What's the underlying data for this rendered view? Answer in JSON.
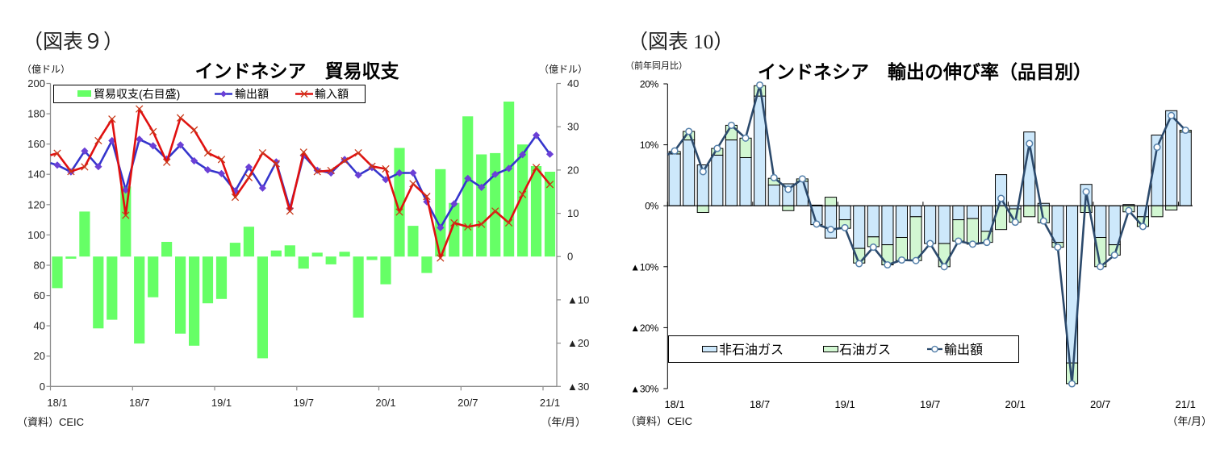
{
  "chart_data": [
    {
      "type": "bar+line",
      "figure_label": "（図表９）",
      "title": "インドネシア　貿易収支",
      "categories": [
        "18/1",
        "18/2",
        "18/3",
        "18/4",
        "18/5",
        "18/6",
        "18/7",
        "18/8",
        "18/9",
        "18/10",
        "18/11",
        "18/12",
        "19/1",
        "19/2",
        "19/3",
        "19/4",
        "19/5",
        "19/6",
        "19/7",
        "19/8",
        "19/9",
        "19/10",
        "19/11",
        "19/12",
        "20/1",
        "20/2",
        "20/3",
        "20/4",
        "20/5",
        "20/6",
        "20/7",
        "20/8",
        "20/9",
        "20/10",
        "20/11",
        "20/12",
        "21/1"
      ],
      "x_tick_labels": [
        "18/1",
        "18/7",
        "19/1",
        "19/7",
        "20/1",
        "20/7",
        "21/1"
      ],
      "x_tick_interval": 6,
      "x_unit": "（年/月）",
      "y_left": {
        "unit": "（億ドル）",
        "min": 0,
        "max": 200,
        "step": 20,
        "tick_labels": [
          "200",
          "180",
          "160",
          "140",
          "120",
          "100",
          "80",
          "60",
          "40",
          "20",
          "0"
        ]
      },
      "y_right": {
        "unit": "（億ドル）",
        "min": -30,
        "max": 40,
        "step": 10,
        "tick_labels": [
          "40",
          "30",
          "20",
          "10",
          "0",
          "▲10",
          "▲20",
          "▲30"
        ]
      },
      "series": [
        {
          "name": "貿易収支(右目盛)",
          "type": "bar",
          "axis": "right",
          "color": "#66ff66",
          "values": [
            -7.3,
            -0.5,
            10.4,
            -16.6,
            -14.6,
            16.2,
            -20.1,
            -9.4,
            3.4,
            -17.8,
            -20.6,
            -10.8,
            -9.8,
            3.2,
            6.9,
            -23.5,
            1.4,
            2.6,
            -2.8,
            0.9,
            -1.8,
            1.1,
            -14.1,
            -0.8,
            -6.4,
            25.1,
            7.1,
            -3.8,
            20.2,
            12.4,
            32.4,
            23.6,
            23.9,
            35.8,
            25.9,
            20.9,
            19.6
          ]
        },
        {
          "name": "輸出額",
          "type": "line",
          "axis": "left",
          "marker": "diamond",
          "color": "#3535cc",
          "marker_color": "#6b40d6",
          "prior_value": 148.7,
          "values": [
            146.1,
            141.6,
            155.4,
            145.1,
            162.2,
            129.7,
            163.1,
            158.8,
            150.1,
            159.4,
            148.9,
            143.0,
            140.5,
            129.0,
            144.8,
            130.9,
            148.2,
            117.4,
            152.4,
            142.7,
            140.9,
            149.8,
            139.5,
            144.5,
            136.5,
            140.9,
            140.9,
            121.9,
            104.8,
            120.5,
            137.3,
            131.4,
            140.0,
            143.9,
            153.0,
            165.8,
            153.3
          ]
        },
        {
          "name": "輸入額",
          "type": "line",
          "axis": "left",
          "marker": "x",
          "color": "#e01010",
          "marker_color": "#c83a1a",
          "prior_value": 151.4,
          "values": [
            153.9,
            141.9,
            144.9,
            162.2,
            176.4,
            113.0,
            183.2,
            168.1,
            148.0,
            177.3,
            169.3,
            154.2,
            149.8,
            124.9,
            137.9,
            154.2,
            147.1,
            115.7,
            154.6,
            141.8,
            142.5,
            148.9,
            154.2,
            145.3,
            143.6,
            115.1,
            133.8,
            125.4,
            84.8,
            108.0,
            105.3,
            107.1,
            115.7,
            108.0,
            126.7,
            144.5,
            133.3
          ]
        }
      ],
      "legend": {
        "position": "top-left"
      },
      "grid": false,
      "source": "（資料）CEIC"
    },
    {
      "type": "stacked-bar+line",
      "figure_label": "（図表 10）",
      "title": "インドネシア　輸出の伸び率（品目別）",
      "categories": [
        "18/1",
        "18/2",
        "18/3",
        "18/4",
        "18/5",
        "18/6",
        "18/7",
        "18/8",
        "18/9",
        "18/10",
        "18/11",
        "18/12",
        "19/1",
        "19/2",
        "19/3",
        "19/4",
        "19/5",
        "19/6",
        "19/7",
        "19/8",
        "19/9",
        "19/10",
        "19/11",
        "19/12",
        "20/1",
        "20/2",
        "20/3",
        "20/4",
        "20/5",
        "20/6",
        "20/7",
        "20/8",
        "20/9",
        "20/10",
        "20/11",
        "20/12",
        "21/1"
      ],
      "x_tick_labels": [
        "18/1",
        "18/7",
        "19/1",
        "19/7",
        "20/1",
        "20/7",
        "21/1"
      ],
      "x_tick_interval": 6,
      "x_unit": "（年/月）",
      "y": {
        "unit": "（前年同月比）",
        "value_unit": "%",
        "min": -30,
        "max": 20,
        "step": 10,
        "tick_labels": [
          "20%",
          "10%",
          "0%",
          "▲10%",
          "▲20%",
          "▲30%"
        ]
      },
      "series": [
        {
          "name": "非石油ガス",
          "type": "bar",
          "stack": "total",
          "color": "#cde8fb",
          "values": [
            8.5,
            10.8,
            6.7,
            8.3,
            10.8,
            7.9,
            18.0,
            3.4,
            3.6,
            4.0,
            -3.1,
            -5.3,
            -2.3,
            -7.0,
            -5.1,
            -6.4,
            -5.2,
            -1.8,
            -6.2,
            -6.2,
            -2.3,
            -2.1,
            -4.2,
            5.1,
            -0.5,
            12.1,
            0.4,
            -6.0,
            -25.8,
            3.5,
            -5.2,
            -6.4,
            0.2,
            -1.8,
            11.6,
            15.6,
            12.1
          ]
        },
        {
          "name": "石油ガス",
          "type": "bar",
          "stack": "total",
          "color": "#d2f7d2",
          "values": [
            0.4,
            1.4,
            -1.1,
            1.1,
            2.4,
            3.2,
            1.7,
            1.1,
            -0.8,
            0.4,
            0.1,
            1.4,
            -1.4,
            -2.4,
            -1.6,
            -3.3,
            -3.8,
            -7.2,
            0.0,
            -3.8,
            -3.5,
            -4.2,
            -1.8,
            -3.9,
            -2.2,
            -1.8,
            -2.8,
            -0.8,
            -3.4,
            -1.1,
            -4.8,
            -1.7,
            -1.0,
            -1.6,
            -1.8,
            -0.7,
            0.3
          ]
        },
        {
          "name": "輸出額",
          "type": "line",
          "marker": "circle",
          "color": "#2c4a6c",
          "marker_color": "#5580aa",
          "prior_value": 7.8,
          "values": [
            9.0,
            12.2,
            5.6,
            9.4,
            13.2,
            11.1,
            19.8,
            4.6,
            2.7,
            4.4,
            -3.0,
            -3.9,
            -3.6,
            -9.5,
            -6.8,
            -9.7,
            -8.9,
            -9.0,
            -6.2,
            -10.0,
            -5.8,
            -6.3,
            -6.0,
            1.2,
            -2.7,
            10.2,
            -2.5,
            -6.8,
            -29.2,
            2.3,
            -10.0,
            -8.1,
            -0.8,
            -3.4,
            9.6,
            14.8,
            12.4
          ]
        }
      ],
      "legend": {
        "position": "bottom-left"
      },
      "grid": false,
      "source": "（資料）CEIC"
    }
  ]
}
